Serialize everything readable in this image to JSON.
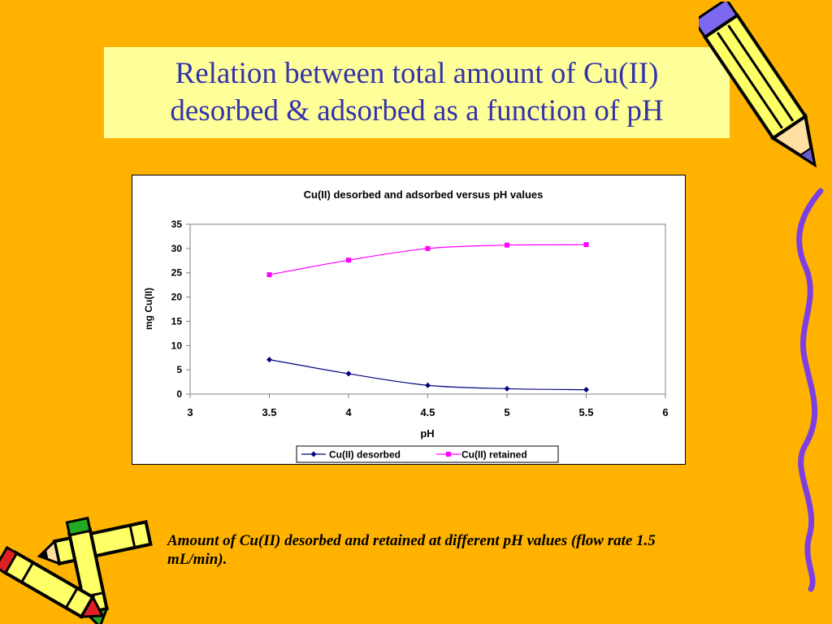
{
  "slide": {
    "title_line1": "Relation between total amount of Cu(II)",
    "title_line2": "desorbed & adsorbed as a function of pH",
    "caption": "Amount of Cu(II) desorbed and retained at different pH values (flow rate 1.5 mL/min).",
    "background_color": "#ffb300",
    "title_bg_color": "#ffff99",
    "title_text_color": "#3333aa"
  },
  "decorations": {
    "top_right": "pencil-icon",
    "right_edge": "wavy-line-icon",
    "bottom_left": "crayons-icon"
  },
  "chart_data": {
    "type": "line",
    "title": "Cu(II) desorbed and adsorbed versus pH values",
    "xlabel": "pH",
    "ylabel": "mg Cu(II)",
    "xlim": [
      3,
      6
    ],
    "ylim": [
      0,
      35
    ],
    "x_ticks": [
      "3",
      "3.5",
      "4",
      "4.5",
      "5",
      "5.5",
      "6"
    ],
    "y_ticks": [
      "0",
      "5",
      "10",
      "15",
      "20",
      "25",
      "30",
      "35"
    ],
    "grid": false,
    "legend_position": "bottom",
    "series": [
      {
        "name": "Cu(II) desorbed",
        "color": "#000080",
        "marker": "diamond",
        "x": [
          3.5,
          4,
          4.5,
          5,
          5.5
        ],
        "y": [
          7.1,
          4.2,
          1.8,
          1.1,
          0.9
        ]
      },
      {
        "name": "Cu(II) retained",
        "color": "#ff00ff",
        "marker": "square",
        "x": [
          3.5,
          4,
          4.5,
          5,
          5.5
        ],
        "y": [
          24.6,
          27.6,
          30.0,
          30.7,
          30.8
        ]
      }
    ]
  }
}
